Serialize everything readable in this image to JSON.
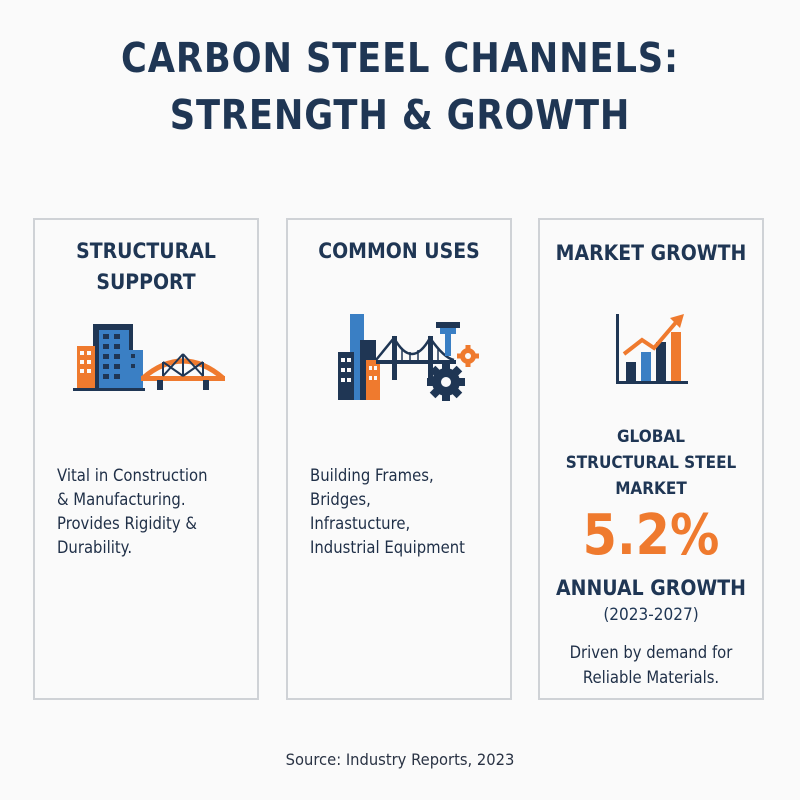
{
  "title": {
    "line1": "CARBON STEEL CHANNELS:",
    "line2": "STRENGTH & GROWTH"
  },
  "colors": {
    "navy": "#1f3654",
    "blue": "#3a7fc4",
    "orange": "#ef7a2e"
  },
  "cards": [
    {
      "heading": "STRUCTURAL\nSUPPORT",
      "icon": "building-and-bridge-icon",
      "body": "Vital in Construction\n& Manufacturing.\nProvides Rigidity &\nDurability."
    },
    {
      "heading": "COMMON USES",
      "icon": "building-bridge-gears-icon",
      "body": "Building Frames,\nBridges,\nInfrastucture,\nIndustrial Equipment"
    },
    {
      "heading": "MARKET GROWTH",
      "icon": "bar-chart-growth-icon",
      "market_label": "GLOBAL\nSTRUCTURAL STEEL\n       MARKET",
      "value": "5.2%",
      "growth_label": "ANNUAL GROWTH",
      "period": "(2023-2027)",
      "driver": "Driven by demand for\nReliable Materials."
    }
  ],
  "source": "Source: Industry Reports, 2023"
}
